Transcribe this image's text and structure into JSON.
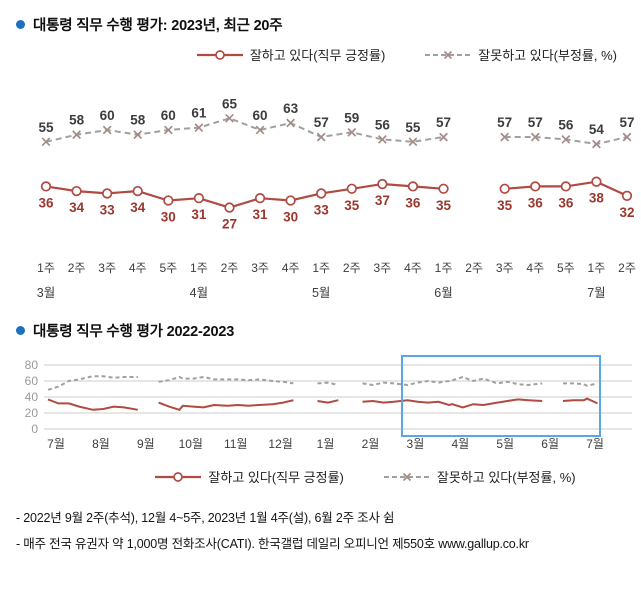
{
  "colors": {
    "positive_line": "#b04a42",
    "positive_label": "#9c372e",
    "negative_line": "#a0a0a0",
    "negative_marker": "#a38c87",
    "negative_label": "#3d3d3d",
    "tick_label": "#3d3d3d",
    "ytick_label": "#9a9a9a",
    "gridline": "#cccccc",
    "bullet": "#1d6fc0",
    "highlight": "#58a6e8"
  },
  "chart_data": [
    {
      "type": "line",
      "title": "대통령 직무 수행 평가: 2023년, 최근 20주",
      "data_labels": true,
      "ylim": [
        20,
        70
      ],
      "x_tick_labels": [
        "1주",
        "2주",
        "3주",
        "4주",
        "5주",
        "1주",
        "2주",
        "3주",
        "4주",
        "1주",
        "2주",
        "3주",
        "4주",
        "1주",
        "2주",
        "3주",
        "4주",
        "5주",
        "1주",
        "2주"
      ],
      "month_ticks": [
        {
          "label": "3월",
          "index": 0
        },
        {
          "label": "4월",
          "index": 5
        },
        {
          "label": "5월",
          "index": 9
        },
        {
          "label": "6월",
          "index": 13
        },
        {
          "label": "7월",
          "index": 18
        }
      ],
      "series": [
        {
          "name": "잘하고 있다(직무 긍정률)",
          "style": "solid-circle",
          "values": [
            36,
            34,
            33,
            34,
            30,
            31,
            27,
            31,
            30,
            33,
            35,
            37,
            36,
            35,
            null,
            35,
            36,
            36,
            38,
            32
          ]
        },
        {
          "name": "잘못하고 있다(부정률, %)",
          "style": "dashed-x",
          "values": [
            55,
            58,
            60,
            58,
            60,
            61,
            65,
            60,
            63,
            57,
            59,
            56,
            55,
            57,
            null,
            57,
            57,
            56,
            54,
            57
          ]
        }
      ]
    },
    {
      "type": "line",
      "title": "대통령 직무 수행 평가 2022-2023",
      "data_labels": false,
      "ylim": [
        0,
        80
      ],
      "yticks": [
        0,
        20,
        40,
        60,
        80
      ],
      "month_ticks": [
        {
          "label": "7월",
          "weeks": 4
        },
        {
          "label": "8월",
          "weeks": 4
        },
        {
          "label": "9월",
          "weeks": 5
        },
        {
          "label": "10월",
          "weeks": 4
        },
        {
          "label": "11월",
          "weeks": 4
        },
        {
          "label": "12월",
          "weeks": 5
        },
        {
          "label": "1월",
          "weeks": 4
        },
        {
          "label": "2월",
          "weeks": 4
        },
        {
          "label": "3월",
          "weeks": 5
        },
        {
          "label": "4월",
          "weeks": 4
        },
        {
          "label": "5월",
          "weeks": 4
        },
        {
          "label": "6월",
          "weeks": 5
        },
        {
          "label": "7월",
          "weeks": 2
        }
      ],
      "highlight_box": {
        "from_month": "3월",
        "to_month": "7월"
      },
      "series": [
        {
          "name": "잘하고 있다(직무 긍정률)",
          "style": "solid",
          "values": [
            37,
            32,
            32,
            28,
            24,
            25,
            28,
            27,
            24,
            null,
            33,
            28,
            24,
            29,
            28,
            27,
            30,
            29,
            30,
            29,
            30,
            31,
            33,
            36,
            null,
            null,
            35,
            33,
            36,
            null,
            34,
            35,
            33,
            34,
            36,
            34,
            33,
            34,
            30,
            31,
            27,
            31,
            30,
            33,
            35,
            37,
            36,
            35,
            null,
            35,
            36,
            36,
            38,
            32
          ]
        },
        {
          "name": "잘못하고 있다(부정률, %)",
          "style": "dashed",
          "values": [
            49,
            53,
            60,
            62,
            66,
            66,
            64,
            65,
            65,
            null,
            59,
            61,
            65,
            63,
            63,
            65,
            62,
            62,
            62,
            61,
            62,
            60,
            59,
            57,
            null,
            null,
            57,
            58,
            55,
            null,
            57,
            55,
            58,
            57,
            55,
            58,
            60,
            58,
            60,
            61,
            65,
            60,
            63,
            57,
            59,
            56,
            55,
            57,
            null,
            57,
            57,
            56,
            54,
            57
          ]
        }
      ]
    }
  ],
  "footnotes": [
    "- 2022년 9월 2주(추석), 12월 4~5주, 2023년 1월 4주(설), 6월 2주 조사 쉼",
    "- 매주 전국 유권자 약 1,000명 전화조사(CATI). 한국갤럽 데일리 오피니언 제550호 www.gallup.co.kr"
  ]
}
